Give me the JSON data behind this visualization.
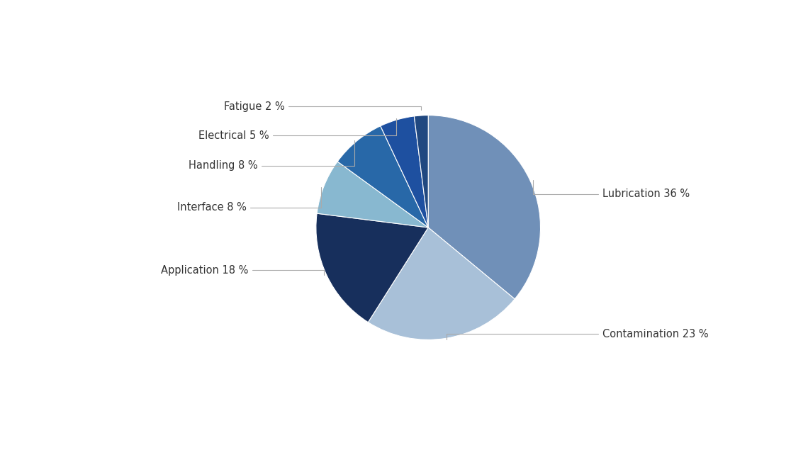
{
  "labels": [
    "Lubrication 36 %",
    "Contamination 23 %",
    "Application 18 %",
    "Interface 8 %",
    "Handling 8 %",
    "Electrical 5 %",
    "Fatigue 2 %"
  ],
  "values": [
    36,
    23,
    18,
    8,
    8,
    5,
    2
  ],
  "colors": [
    "#7090b8",
    "#a8c0d8",
    "#172f5c",
    "#88b8d0",
    "#2868a8",
    "#1e50a0",
    "#204880"
  ],
  "background_color": "#ffffff",
  "label_font_size": 10.5,
  "label_color": "#333333",
  "line_color": "#aaaaaa",
  "startangle": 90
}
